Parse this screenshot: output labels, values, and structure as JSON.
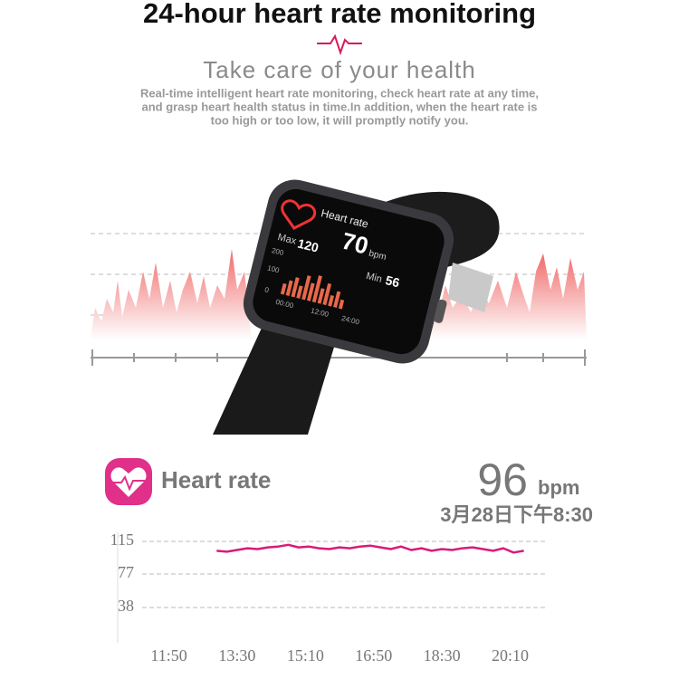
{
  "header": {
    "title": "24-hour heart rate monitoring",
    "subtitle": "Take care of your health",
    "description": [
      "Real-time intelligent heart rate monitoring, check heart rate at any time,",
      "and grasp heart health status in time.In addition, when the heart rate is",
      "too high or too low, it will promptly notify you."
    ]
  },
  "watch": {
    "title": "Heart rate",
    "value": "70",
    "unit": "bpm",
    "max_label": "Max",
    "max": "120",
    "min_label": "Min",
    "min": "56",
    "axis_values": [
      "200",
      "100",
      "0"
    ],
    "axis_times": [
      "00:00",
      "12:00",
      "24:00"
    ]
  },
  "panel": {
    "title": "Heart rate",
    "value": "96",
    "unit": "bpm",
    "timestamp": "3月28日下午8:30"
  },
  "chart_data": {
    "type": "line",
    "color": "#d81b7a",
    "grid": true,
    "x": [
      780,
      795,
      810,
      825,
      840,
      855,
      870,
      885,
      900,
      915,
      930,
      945,
      960,
      975,
      990,
      1005,
      1020,
      1035,
      1050,
      1065,
      1080,
      1095,
      1110,
      1125,
      1140,
      1155,
      1170,
      1185,
      1200,
      1215,
      1230
    ],
    "values": [
      104,
      103,
      105,
      107,
      106,
      108,
      109,
      111,
      108,
      109,
      107,
      106,
      108,
      107,
      109,
      110,
      108,
      106,
      109,
      105,
      107,
      104,
      106,
      105,
      107,
      108,
      106,
      104,
      107,
      102,
      104
    ],
    "xlim": [
      635,
      1265
    ],
    "ylim": [
      0,
      125
    ],
    "xticks": [
      {
        "value": 710,
        "label": "11:50"
      },
      {
        "value": 810,
        "label": "13:30"
      },
      {
        "value": 910,
        "label": "15:10"
      },
      {
        "value": 1010,
        "label": "16:50"
      },
      {
        "value": 1110,
        "label": "18:30"
      },
      {
        "value": 1210,
        "label": "20:10"
      }
    ],
    "yticks": [
      38,
      77,
      115
    ]
  }
}
